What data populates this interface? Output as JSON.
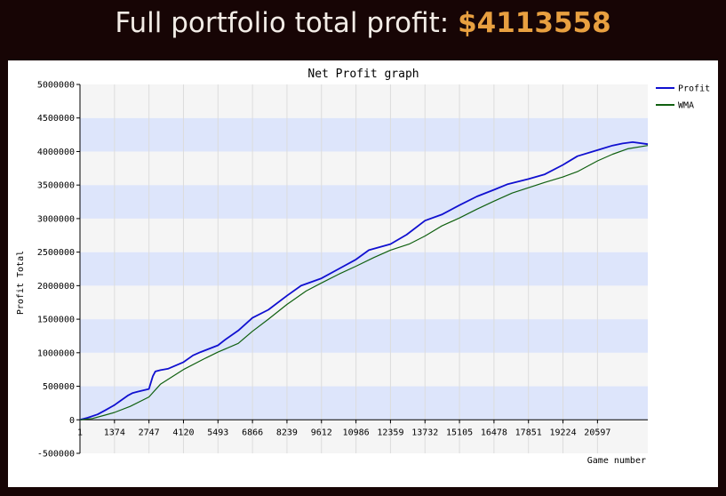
{
  "header": {
    "prefix": "Full portfolio total profit: ",
    "amount": "$4113558"
  },
  "colors": {
    "background": "#170505",
    "amount": "#e8a040",
    "profit_line": "#1010d0",
    "wma_line": "#106010",
    "band_light": "#f5f5f5",
    "band_blue": "#dde5fb"
  },
  "chart_data": {
    "type": "line",
    "title": "Net Profit graph",
    "xlabel": "Game number",
    "ylabel": "Profit Total",
    "ylim": [
      -500000,
      5000000
    ],
    "xlim": [
      1,
      22600
    ],
    "yticks": [
      -500000,
      0,
      500000,
      1000000,
      1500000,
      2000000,
      2500000,
      3000000,
      3500000,
      4000000,
      4500000,
      5000000
    ],
    "ytick_labels": [
      "-500000",
      "0",
      "500000",
      "1000000",
      "1500000",
      "2000000",
      "2500000",
      "3000000",
      "3500000",
      "4000000",
      "4500000",
      "5000000"
    ],
    "xticks": [
      1,
      1374,
      2747,
      4120,
      5493,
      6866,
      8239,
      9612,
      10986,
      12359,
      13732,
      15105,
      16478,
      17851,
      19224,
      20597
    ],
    "xtick_labels": [
      "1",
      "1374",
      "2747",
      "4120",
      "5493",
      "6866",
      "8239",
      "9612",
      "10986",
      "12359",
      "13732",
      "15105",
      "16478",
      "17851",
      "19224",
      "20597"
    ],
    "grid": true,
    "legend": "top-right",
    "series": [
      {
        "name": "Profit",
        "x": [
          1,
          300,
          700,
          1000,
          1374,
          1600,
          1900,
          2100,
          2300,
          2747,
          2900,
          3000,
          3200,
          3500,
          4120,
          4500,
          4800,
          5493,
          5800,
          6300,
          6866,
          7500,
          8239,
          8800,
          9612,
          10300,
          10986,
          11500,
          12359,
          13000,
          13732,
          14400,
          15105,
          15800,
          16478,
          17000,
          17851,
          18500,
          19224,
          19800,
          20597,
          21200,
          21600,
          22000,
          22600
        ],
        "values": [
          0,
          30000,
          80000,
          140000,
          220000,
          280000,
          360000,
          400000,
          420000,
          460000,
          650000,
          720000,
          740000,
          760000,
          860000,
          960000,
          1010000,
          1110000,
          1200000,
          1330000,
          1520000,
          1640000,
          1850000,
          2000000,
          2110000,
          2250000,
          2390000,
          2530000,
          2620000,
          2760000,
          2970000,
          3060000,
          3200000,
          3330000,
          3430000,
          3510000,
          3590000,
          3660000,
          3800000,
          3930000,
          4020000,
          4090000,
          4120000,
          4140000,
          4110000
        ]
      },
      {
        "name": "WMA",
        "x": [
          1,
          500,
          1000,
          1374,
          2000,
          2747,
          3200,
          4120,
          5000,
          5493,
          6300,
          6866,
          7500,
          8239,
          9000,
          9612,
          10300,
          10986,
          11700,
          12359,
          13100,
          13732,
          14400,
          15105,
          15800,
          16478,
          17200,
          17851,
          18500,
          19224,
          19800,
          20597,
          21200,
          21800,
          22600
        ],
        "values": [
          0,
          20000,
          70000,
          110000,
          200000,
          340000,
          530000,
          750000,
          920000,
          1010000,
          1140000,
          1320000,
          1500000,
          1720000,
          1920000,
          2040000,
          2170000,
          2290000,
          2420000,
          2530000,
          2620000,
          2740000,
          2890000,
          3010000,
          3140000,
          3260000,
          3380000,
          3460000,
          3540000,
          3620000,
          3700000,
          3860000,
          3960000,
          4040000,
          4090000
        ]
      }
    ]
  }
}
